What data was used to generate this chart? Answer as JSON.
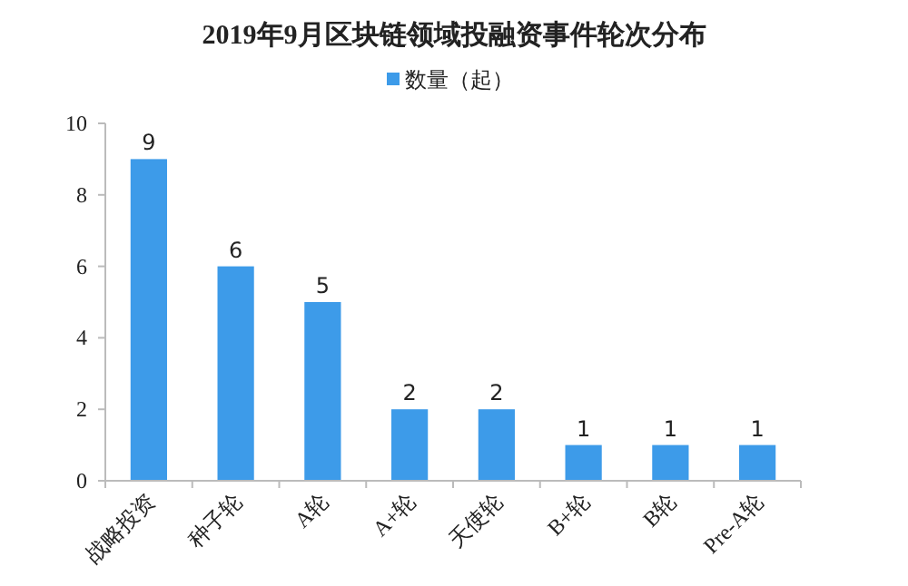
{
  "chart_data": {
    "type": "bar",
    "title": "2019年9月区块链领域投融资事件轮次分布",
    "categories": [
      "战略投资",
      "种子轮",
      "A轮",
      "A+轮",
      "天使轮",
      "B+轮",
      "B轮",
      "Pre-A轮"
    ],
    "series": [
      {
        "name": "数量（起）",
        "color": "#3d9be9",
        "values": [
          9,
          6,
          5,
          2,
          2,
          1,
          1,
          1
        ]
      }
    ],
    "ylim": [
      0,
      10
    ],
    "yticks": [
      0,
      2,
      4,
      6,
      8,
      10
    ],
    "grid": false,
    "legend": "top",
    "data_labels": true
  }
}
